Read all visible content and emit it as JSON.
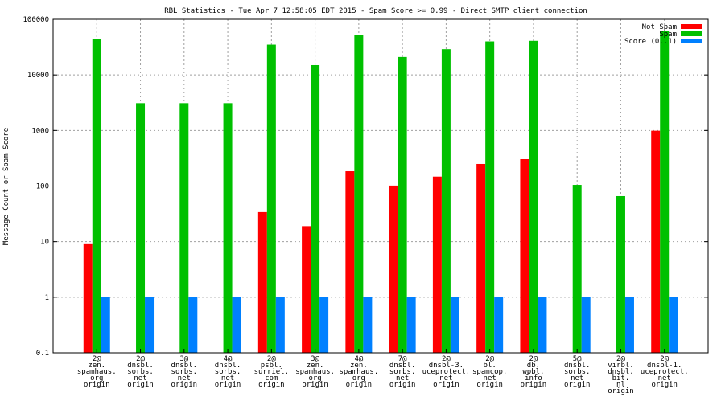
{
  "chart_data": {
    "type": "bar",
    "title": "RBL Statistics - Tue Apr  7 12:58:05 EDT 2015 - Spam Score >= 0.99 - Direct SMTP client connection",
    "ylabel": "Message Count or Spam Score",
    "xlabel": "",
    "yscale": "log",
    "ylim": [
      0.1,
      100000
    ],
    "yticks": [
      "0.1",
      "1",
      "10",
      "100",
      "1000",
      "10000",
      "100000"
    ],
    "grid": true,
    "legend_position": "top-right",
    "categories": [
      [
        "2@",
        "zen.",
        "spamhaus.",
        "org",
        "origin"
      ],
      [
        "2@",
        "dnsbl.",
        "sorbs.",
        "net",
        "origin"
      ],
      [
        "3@",
        "dnsbl.",
        "sorbs.",
        "net",
        "origin"
      ],
      [
        "4@",
        "dnsbl.",
        "sorbs.",
        "net",
        "origin"
      ],
      [
        "2@",
        "psbl.",
        "surriel.",
        "com",
        "origin"
      ],
      [
        "3@",
        "zen.",
        "spamhaus.",
        "org",
        "origin"
      ],
      [
        "4@",
        "zen.",
        "spamhaus.",
        "org",
        "origin"
      ],
      [
        "7@",
        "dnsbl.",
        "sorbs.",
        "net",
        "origin"
      ],
      [
        "2@",
        "dnsbl-3.",
        "uceprotect.",
        "net",
        "origin"
      ],
      [
        "2@",
        "bl.",
        "spamcop.",
        "net",
        "origin"
      ],
      [
        "2@",
        "db.",
        "wpbl.",
        "info",
        "origin"
      ],
      [
        "5@",
        "dnsbl.",
        "sorbs.",
        "net",
        "origin"
      ],
      [
        "2@",
        "virbl.",
        "dnsbl.",
        "bit.",
        "nl",
        "origin"
      ],
      [
        "2@",
        "dnsbl-1.",
        "uceprotect.",
        "net",
        "origin"
      ]
    ],
    "series": [
      {
        "name": "Not Spam",
        "color": "#ff0000",
        "values": [
          9,
          null,
          null,
          null,
          34,
          19,
          185,
          102,
          148,
          250,
          305,
          null,
          null,
          990
        ]
      },
      {
        "name": "Spam",
        "color": "#00c000",
        "values": [
          44000,
          3100,
          3100,
          3100,
          35000,
          15000,
          52000,
          21000,
          29000,
          40000,
          41000,
          105,
          66,
          62000
        ]
      },
      {
        "name": "Score (0..1)",
        "color": "#0080ff",
        "values": [
          1,
          1,
          1,
          1,
          1,
          1,
          1,
          1,
          1,
          1,
          1,
          1,
          1,
          1
        ]
      }
    ]
  }
}
